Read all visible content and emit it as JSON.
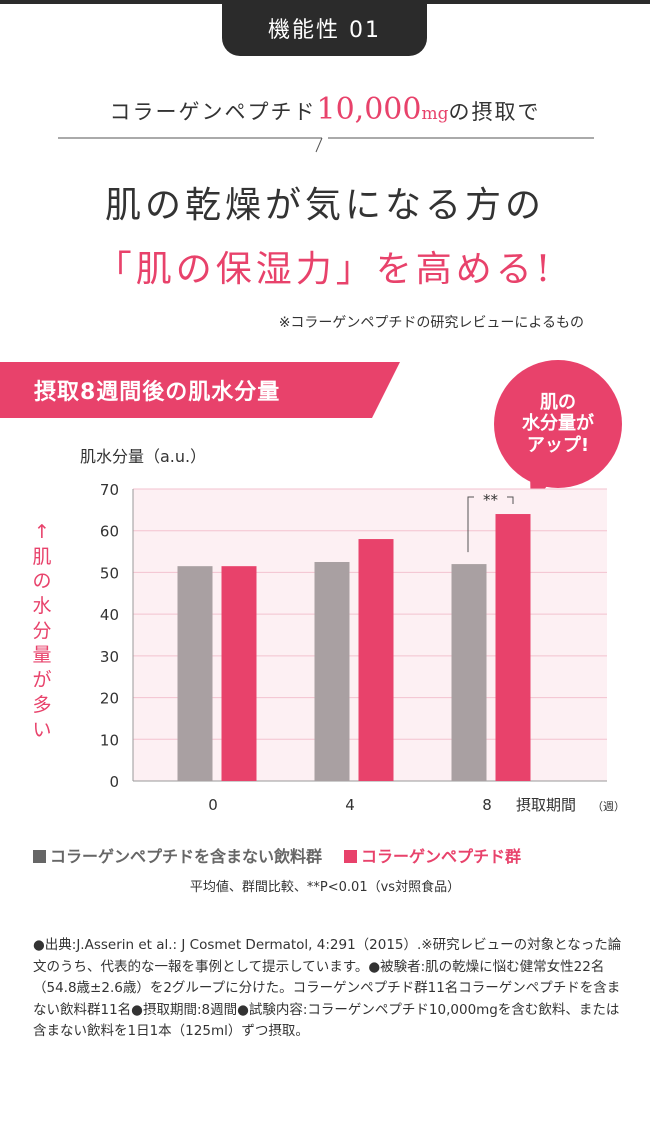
{
  "badge": "機能性 01",
  "subhead": {
    "pre": "コラーゲンペプチド",
    "amount": "10,000",
    "unit": "mg",
    "post": "の摂取で"
  },
  "headline1": "肌の乾燥が気になる方の",
  "headline2": "「肌の保湿力」を高める!",
  "note": "※コラーゲンペプチドの研究レビューによるもの",
  "banner": "摂取8週間後の肌水分量",
  "bubble": {
    "line1": "肌の",
    "line2": "水分量が",
    "line3": "アップ!"
  },
  "vertical_label": "↑肌の水分量が多い",
  "colors": {
    "accent": "#e8426b",
    "control": "#a9a0a2",
    "plot_bg": "#fdf0f3"
  },
  "chart_data": {
    "type": "bar",
    "ylabel": "肌水分量（a.u.）",
    "xlabel": "摂取期間",
    "xlabel_unit": "（週）",
    "categories": [
      "0",
      "4",
      "8"
    ],
    "ylim": [
      0,
      70
    ],
    "yticks": [
      "0",
      "10",
      "20",
      "30",
      "40",
      "50",
      "60",
      "70"
    ],
    "series": [
      {
        "name": "コラーゲンペプチドを含まない飲料群",
        "values": [
          51.5,
          52.5,
          52.0
        ]
      },
      {
        "name": "コラーゲンペプチド群",
        "values": [
          51.5,
          58.0,
          64.0
        ]
      }
    ],
    "significance": {
      "category": "8",
      "label": "**"
    }
  },
  "legend": {
    "control": "コラーゲンペプチドを含まない飲料群",
    "treatment": "コラーゲンペプチド群"
  },
  "stat_note": "平均値、群間比較、**P<0.01（vs対照食品）",
  "source": "●出典:J.Asserin et al.: J Cosmet Dermatol, 4:291（2015）.※研究レビューの対象となった論文のうち、代表的な一報を事例として提示しています。●被験者:肌の乾燥に悩む健常女性22名（54.8歳±2.6歳）を2グループに分けた。コラーゲンペプチド群11名コラーゲンペプチドを含まない飲料群11名●摂取期間:8週間●試験内容:コラーゲンペプチド10,000mgを含む飲料、または含まない飲料を1日1本（125ml）ずつ摂取。"
}
